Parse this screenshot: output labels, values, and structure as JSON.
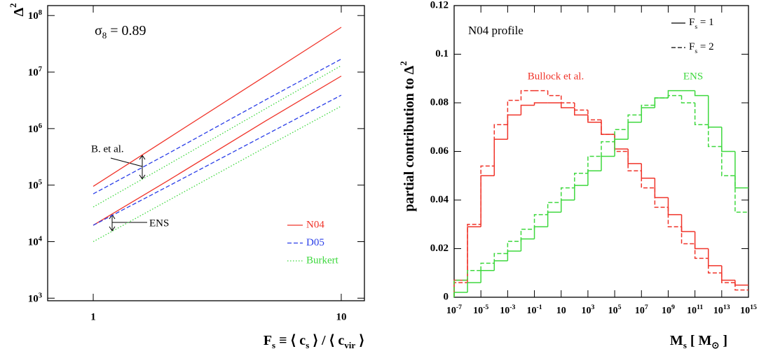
{
  "chart_data": [
    {
      "type": "line",
      "xlog": true,
      "ylog": true,
      "ylabel": [
        {
          "text": "Δ"
        },
        {
          "text": "2",
          "sup": true
        }
      ],
      "xlabel": [
        {
          "text": "F"
        },
        {
          "text": "s",
          "sub": true
        },
        {
          "text": " ≡ ⟨ c"
        },
        {
          "text": "s",
          "sub": true
        },
        {
          "text": " ⟩ / ⟨ c"
        },
        {
          "text": "vir",
          "sub": true
        },
        {
          "text": " ⟩"
        }
      ],
      "annotation": [
        {
          "text": "σ"
        },
        {
          "text": "8",
          "sub": true
        },
        {
          "text": " = 0.89"
        }
      ],
      "group_labels": [
        "B. et al.",
        "ENS"
      ],
      "xlim": [
        0.655,
        12.4
      ],
      "ylim": [
        900,
        150000000
      ],
      "xticks": [
        1,
        10
      ],
      "yticks": [
        {
          "value": 1000,
          "label": "10",
          "exp": "3"
        },
        {
          "value": 10000,
          "label": "10",
          "exp": "4"
        },
        {
          "value": 100000,
          "label": "10",
          "exp": "5"
        },
        {
          "value": 1000000,
          "label": "10",
          "exp": "6"
        },
        {
          "value": 10000000,
          "label": "10",
          "exp": "7"
        },
        {
          "value": 100000000,
          "label": "10",
          "exp": "8"
        }
      ],
      "x": [
        1,
        2,
        5,
        10
      ],
      "series": [
        {
          "name": "N04",
          "color": "#f0342a",
          "dash": "solid",
          "values": [
            95000,
            670000,
            8800000,
            62000000
          ],
          "values_ens": [
            19500,
            120000,
            1400000,
            8500000
          ]
        },
        {
          "name": "D05",
          "color": "#2a3ee8",
          "dash": "dashed",
          "values": [
            70000,
            360000,
            3300000,
            17000000
          ],
          "values_ens": [
            19500,
            95000,
            790000,
            3900000
          ]
        },
        {
          "name": "Burkert",
          "color": "#3ed83e",
          "dash": "dotted",
          "values": [
            41000,
            230000,
            2300000,
            13000000
          ],
          "values_ens": [
            10000,
            53000,
            480000,
            2500000
          ]
        }
      ]
    },
    {
      "type": "histogram",
      "xlog": true,
      "ylabel": [
        {
          "text": "partial contribution to  Δ"
        },
        {
          "text": "2",
          "sup": true
        }
      ],
      "xlabel": [
        {
          "text": "M"
        },
        {
          "text": "s",
          "sub": true
        },
        {
          "text": " [ M"
        },
        {
          "text": "⊙",
          "sub": true
        },
        {
          "text": " ]"
        }
      ],
      "annotation": "N04 profile",
      "legend": [
        {
          "parts": [
            {
              "text": "F"
            },
            {
              "text": "s",
              "sub": true
            },
            {
              "text": " = 1"
            }
          ],
          "dash": "solid"
        },
        {
          "parts": [
            {
              "text": "F"
            },
            {
              "text": "s",
              "sub": true
            },
            {
              "text": " = 2"
            }
          ],
          "dash": "dashed"
        }
      ],
      "xlim": [
        1e-07,
        1000000000000000.0
      ],
      "ylim": [
        0,
        0.12
      ],
      "xticks": [
        {
          "value": 1e-07,
          "label": "10",
          "exp": "-7"
        },
        {
          "value": 1e-05,
          "label": "10",
          "exp": "-5"
        },
        {
          "value": 0.001,
          "label": "10",
          "exp": "-3"
        },
        {
          "value": 0.1,
          "label": "10",
          "exp": "-1"
        },
        10,
        {
          "value": 1000,
          "label": "10",
          "exp": "3"
        },
        {
          "value": 100000,
          "label": "10",
          "exp": "5"
        },
        {
          "value": 10000000,
          "label": "10",
          "exp": "7"
        },
        {
          "value": 1000000000,
          "label": "10",
          "exp": "9"
        },
        {
          "value": 100000000000,
          "label": "10",
          "exp": "11"
        },
        {
          "value": 10000000000000,
          "label": "10",
          "exp": "13"
        },
        {
          "value": 1000000000000000,
          "label": "10",
          "exp": "15"
        }
      ],
      "yticks": [
        0,
        0.02,
        0.04,
        0.06,
        0.08,
        0.1,
        0.12
      ],
      "bins": [
        1e-07,
        1e-06,
        1e-05,
        0.0001,
        0.001,
        0.01,
        0.1,
        1,
        10,
        100,
        1000,
        10000.0,
        100000.0,
        1000000.0,
        10000000.0,
        100000000.0,
        1000000000.0,
        10000000000.0,
        100000000000.0,
        1000000000000.0,
        10000000000000.0,
        100000000000000.0,
        1000000000000000.0
      ],
      "series": [
        {
          "name": "Bullock et al.",
          "color": "#f0342a",
          "values": [
            0.007,
            0.029,
            0.05,
            0.065,
            0.075,
            0.079,
            0.08,
            0.08,
            0.078,
            0.075,
            0.072,
            0.067,
            0.061,
            0.055,
            0.049,
            0.041,
            0.034,
            0.027,
            0.02,
            0.013,
            0.007,
            0.005
          ],
          "values_dashed": [
            0.006,
            0.03,
            0.054,
            0.071,
            0.081,
            0.085,
            0.085,
            0.083,
            0.08,
            0.077,
            0.073,
            0.067,
            0.06,
            0.052,
            0.045,
            0.037,
            0.029,
            0.022,
            0.016,
            0.01,
            0.006,
            0.003
          ]
        },
        {
          "name": "ENS",
          "color": "#3ed83e",
          "values": [
            0.002,
            0.006,
            0.011,
            0.015,
            0.019,
            0.024,
            0.029,
            0.035,
            0.04,
            0.046,
            0.052,
            0.058,
            0.065,
            0.072,
            0.078,
            0.082,
            0.085,
            0.085,
            0.083,
            0.07,
            0.06,
            0.045
          ],
          "values_dashed": [
            0.007,
            0.011,
            0.014,
            0.018,
            0.023,
            0.028,
            0.034,
            0.039,
            0.045,
            0.051,
            0.058,
            0.064,
            0.069,
            0.075,
            0.079,
            0.082,
            0.083,
            0.08,
            0.071,
            0.062,
            0.05,
            0.035
          ]
        }
      ]
    }
  ]
}
